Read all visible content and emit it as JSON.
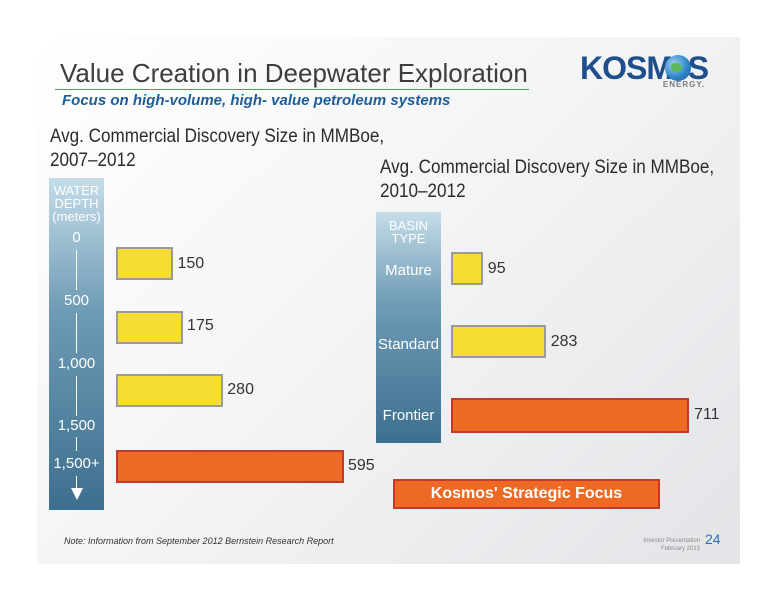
{
  "slide": {
    "title": "Value Creation in Deepwater Exploration",
    "subtitle": "Focus on high-volume, high- value petroleum systems",
    "logo": {
      "name": "KOSMOS",
      "sub": "ENERGY."
    },
    "note": "Note: Information from September 2012 Bernstein Research Report",
    "footer_line1": "Investor Presentation",
    "footer_line2": "February 2013",
    "page_number": "24",
    "strategic_focus": "Kosmos' Strategic Focus"
  },
  "colors": {
    "yellow": "#f7dc33",
    "orange": "#ee6a24",
    "title_rule": "#4aa35a",
    "subtitle": "#1f5d99"
  },
  "chart_data": [
    {
      "type": "bar",
      "title_line1": "Avg. Commercial Discovery Size in MMBoe,",
      "title_line2": "2007–2012",
      "axis_header": [
        "WATER",
        "DEPTH",
        "(meters)"
      ],
      "axis_ticks": [
        "0",
        "500",
        "1,000",
        "1,500",
        "1,500+"
      ],
      "categories": [
        "0-500",
        "500-1,000",
        "1,000-1,500",
        "1,500+"
      ],
      "values": [
        150,
        175,
        280,
        595
      ],
      "value_labels": [
        "150",
        "175",
        "280",
        "595"
      ],
      "bar_colors": [
        "yellow",
        "yellow",
        "yellow",
        "orange"
      ],
      "orientation": "horizontal"
    },
    {
      "type": "bar",
      "title_line1": "Avg. Commercial Discovery Size in MMBoe,",
      "title_line2": "2010–2012",
      "axis_header": [
        "BASIN",
        "TYPE"
      ],
      "categories": [
        "Mature",
        "Standard",
        "Frontier"
      ],
      "values": [
        95,
        283,
        711
      ],
      "value_labels": [
        "95",
        "283",
        "711"
      ],
      "bar_colors": [
        "yellow",
        "yellow",
        "orange"
      ],
      "orientation": "horizontal"
    }
  ]
}
